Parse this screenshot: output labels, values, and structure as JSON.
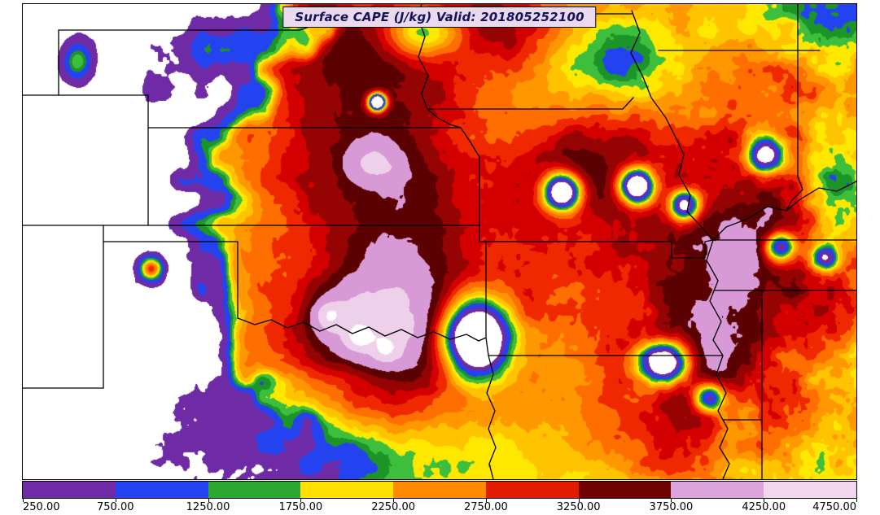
{
  "title": {
    "text": "Surface CAPE (J/kg) Valid: 201805252100",
    "variable": "Surface CAPE",
    "units": "J/kg",
    "valid_time": "201805252100",
    "box_bg_color": "#EBD9EE",
    "text_color": "#14145A"
  },
  "colorbar": {
    "tick_labels": [
      "250.00",
      "750.00",
      "1250.00",
      "1750.00",
      "2250.00",
      "2750.00",
      "3250.00",
      "3750.00",
      "4250.00",
      "4750.00"
    ],
    "segment_colors": [
      "#6E2BA5",
      "#2443F0",
      "#2BA82F",
      "#FFE000",
      "#FF8A00",
      "#E11C00",
      "#700202",
      "#DCA4DC",
      "#F1D6EE"
    ],
    "min": 250,
    "max": 4750,
    "units": "J/kg",
    "border_color": "#000000"
  },
  "chart_data": {
    "type": "heatmap",
    "title": "Surface CAPE (J/kg)",
    "valid": "201805252100",
    "units": "J/kg",
    "colorbar_ticks": [
      250,
      750,
      1250,
      1750,
      2250,
      2750,
      3250,
      3750,
      4250,
      4750
    ],
    "levels": [
      250,
      750,
      1250,
      1500,
      1750,
      2000,
      2250,
      2500,
      2750,
      3000,
      3250,
      3500,
      3750,
      4250,
      4750
    ],
    "colors": [
      "#6E2BA5",
      "#2443F0",
      "#1C9428",
      "#3DBF3D",
      "#FFE800",
      "#FFC400",
      "#FF9800",
      "#FF6E00",
      "#EF2800",
      "#D40000",
      "#960303",
      "#5C0101",
      "#D79AD7",
      "#EFD0EB"
    ],
    "below_min_color": "#FFFFFF",
    "above_max_color": "#FFFFFF",
    "plot_bg": "#FFFFFF",
    "legend_position": "bottom",
    "grid": false
  }
}
